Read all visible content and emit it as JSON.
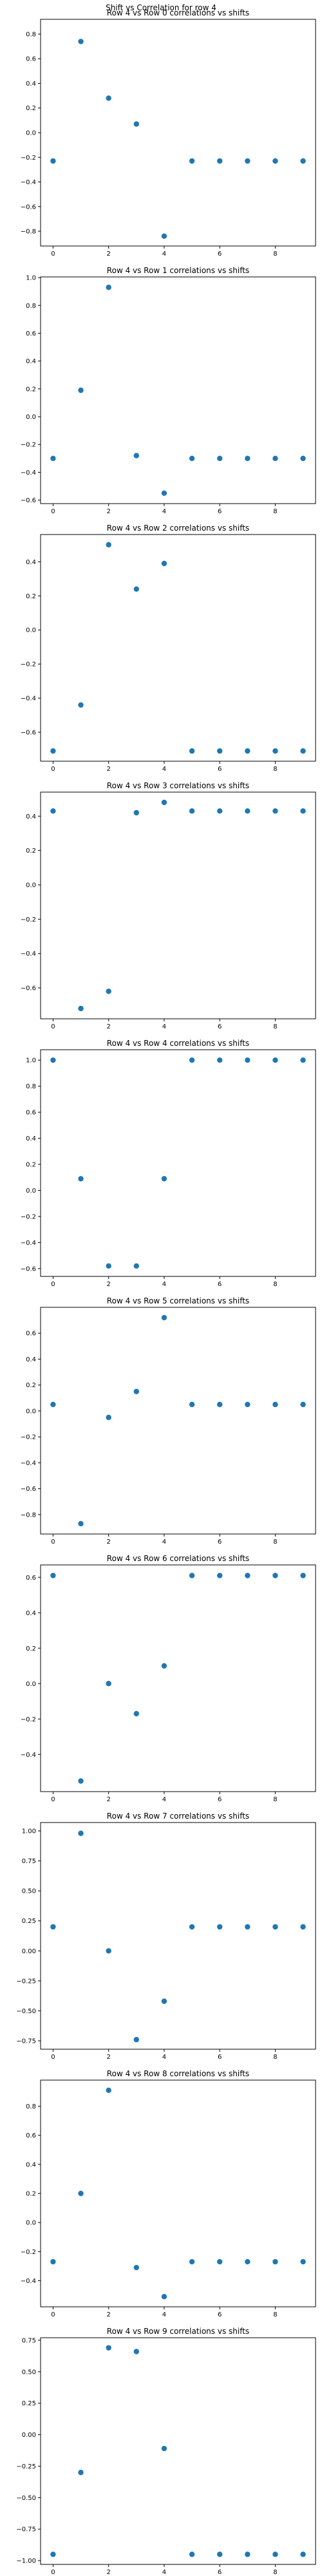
{
  "figure": {
    "suptitle": "Shift vs Correlation for row 4",
    "marker_color": "#1f77b4"
  },
  "chart_data": [
    {
      "type": "scatter",
      "title": "Row 4 vs Row 0 correlations vs shifts",
      "x": [
        0,
        1,
        2,
        3,
        4,
        5,
        6,
        7,
        8,
        9
      ],
      "y": [
        -0.23,
        0.74,
        0.28,
        0.07,
        -0.84,
        -0.23,
        -0.23,
        -0.23,
        -0.23,
        -0.23
      ],
      "xticks": [
        0,
        2,
        4,
        6,
        8
      ],
      "yticks": [
        -0.8,
        -0.6,
        -0.4,
        -0.2,
        0.0,
        0.2,
        0.4,
        0.6,
        0.8
      ],
      "ytick_labels": [
        "−0.8",
        "−0.6",
        "−0.4",
        "−0.2",
        "0.0",
        "0.2",
        "0.4",
        "0.6",
        "0.8"
      ],
      "xlim": [
        -0.45,
        9.45
      ],
      "ylim": [
        -0.92,
        0.92
      ]
    },
    {
      "type": "scatter",
      "title": "Row 4 vs Row 1 correlations vs shifts",
      "x": [
        0,
        1,
        2,
        3,
        4,
        5,
        6,
        7,
        8,
        9
      ],
      "y": [
        -0.3,
        0.19,
        0.93,
        -0.28,
        -0.55,
        -0.3,
        -0.3,
        -0.3,
        -0.3,
        -0.3
      ],
      "xticks": [
        0,
        2,
        4,
        6,
        8
      ],
      "yticks": [
        -0.6,
        -0.4,
        -0.2,
        0.0,
        0.2,
        0.4,
        0.6,
        0.8,
        1.0
      ],
      "ytick_labels": [
        "−0.6",
        "−0.4",
        "−0.2",
        "0.0",
        "0.2",
        "0.4",
        "0.6",
        "0.8",
        "1.0"
      ],
      "xlim": [
        -0.45,
        9.45
      ],
      "ylim": [
        -0.625,
        1.005
      ]
    },
    {
      "type": "scatter",
      "title": "Row 4 vs Row 2 correlations vs shifts",
      "x": [
        0,
        1,
        2,
        3,
        4,
        5,
        6,
        7,
        8,
        9
      ],
      "y": [
        -0.71,
        -0.44,
        0.5,
        0.24,
        0.39,
        -0.71,
        -0.71,
        -0.71,
        -0.71,
        -0.71
      ],
      "xticks": [
        0,
        2,
        4,
        6,
        8
      ],
      "yticks": [
        -0.6,
        -0.4,
        -0.2,
        0.0,
        0.2,
        0.4
      ],
      "ytick_labels": [
        "−0.6",
        "−0.4",
        "−0.2",
        "0.0",
        "0.2",
        "0.4"
      ],
      "xlim": [
        -0.45,
        9.45
      ],
      "ylim": [
        -0.77,
        0.56
      ]
    },
    {
      "type": "scatter",
      "title": "Row 4 vs Row 3 correlations vs shifts",
      "x": [
        0,
        1,
        2,
        3,
        4,
        5,
        6,
        7,
        8,
        9
      ],
      "y": [
        0.43,
        -0.72,
        -0.62,
        0.42,
        0.48,
        0.43,
        0.43,
        0.43,
        0.43,
        0.43
      ],
      "xticks": [
        0,
        2,
        4,
        6,
        8
      ],
      "yticks": [
        -0.6,
        -0.4,
        -0.2,
        0.0,
        0.2,
        0.4
      ],
      "ytick_labels": [
        "−0.6",
        "−0.4",
        "−0.2",
        "0.0",
        "0.2",
        "0.4"
      ],
      "xlim": [
        -0.45,
        9.45
      ],
      "ylim": [
        -0.78,
        0.54
      ]
    },
    {
      "type": "scatter",
      "title": "Row 4 vs Row 4 correlations vs shifts",
      "x": [
        0,
        1,
        2,
        3,
        4,
        5,
        6,
        7,
        8,
        9
      ],
      "y": [
        1.0,
        0.09,
        -0.58,
        -0.58,
        0.09,
        1.0,
        1.0,
        1.0,
        1.0,
        1.0
      ],
      "xticks": [
        0,
        2,
        4,
        6,
        8
      ],
      "yticks": [
        -0.6,
        -0.4,
        -0.2,
        0.0,
        0.2,
        0.4,
        0.6,
        0.8,
        1.0
      ],
      "ytick_labels": [
        "−0.6",
        "−0.4",
        "−0.2",
        "0.0",
        "0.2",
        "0.4",
        "0.6",
        "0.8",
        "1.0"
      ],
      "xlim": [
        -0.45,
        9.45
      ],
      "ylim": [
        -0.66,
        1.08
      ]
    },
    {
      "type": "scatter",
      "title": "Row 4 vs Row 5 correlations vs shifts",
      "x": [
        0,
        1,
        2,
        3,
        4,
        5,
        6,
        7,
        8,
        9
      ],
      "y": [
        0.05,
        -0.87,
        -0.05,
        0.15,
        0.72,
        0.05,
        0.05,
        0.05,
        0.05,
        0.05
      ],
      "xticks": [
        0,
        2,
        4,
        6,
        8
      ],
      "yticks": [
        -0.8,
        -0.6,
        -0.4,
        -0.2,
        0.0,
        0.2,
        0.4,
        0.6
      ],
      "ytick_labels": [
        "−0.8",
        "−0.6",
        "−0.4",
        "−0.2",
        "0.0",
        "0.2",
        "0.4",
        "0.6"
      ],
      "xlim": [
        -0.45,
        9.45
      ],
      "ylim": [
        -0.95,
        0.8
      ]
    },
    {
      "type": "scatter",
      "title": "Row 4 vs Row 6 correlations vs shifts",
      "x": [
        0,
        1,
        2,
        3,
        4,
        5,
        6,
        7,
        8,
        9
      ],
      "y": [
        0.61,
        -0.55,
        0.0,
        -0.17,
        0.1,
        0.61,
        0.61,
        0.61,
        0.61,
        0.61
      ],
      "xticks": [
        0,
        2,
        4,
        6,
        8
      ],
      "yticks": [
        -0.4,
        -0.2,
        0.0,
        0.2,
        0.4,
        0.6
      ],
      "ytick_labels": [
        "−0.4",
        "−0.2",
        "0.0",
        "0.2",
        "0.4",
        "0.6"
      ],
      "xlim": [
        -0.45,
        9.45
      ],
      "ylim": [
        -0.61,
        0.67
      ]
    },
    {
      "type": "scatter",
      "title": "Row 4 vs Row 7 correlations vs shifts",
      "x": [
        0,
        1,
        2,
        3,
        4,
        5,
        6,
        7,
        8,
        9
      ],
      "y": [
        0.2,
        0.98,
        0.0,
        -0.74,
        -0.42,
        0.2,
        0.2,
        0.2,
        0.2,
        0.2
      ],
      "xticks": [
        0,
        2,
        4,
        6,
        8
      ],
      "yticks": [
        -0.75,
        -0.5,
        -0.25,
        0.0,
        0.25,
        0.5,
        0.75,
        1.0
      ],
      "ytick_labels": [
        "−0.75",
        "−0.50",
        "−0.25",
        "0.00",
        "0.25",
        "0.50",
        "0.75",
        "1.00"
      ],
      "xlim": [
        -0.45,
        9.45
      ],
      "ylim": [
        -0.82,
        1.07
      ]
    },
    {
      "type": "scatter",
      "title": "Row 4 vs Row 8 correlations vs shifts",
      "x": [
        0,
        1,
        2,
        3,
        4,
        5,
        6,
        7,
        8,
        9
      ],
      "y": [
        -0.27,
        0.2,
        0.91,
        -0.31,
        -0.51,
        -0.27,
        -0.27,
        -0.27,
        -0.27,
        -0.27
      ],
      "xticks": [
        0,
        2,
        4,
        6,
        8
      ],
      "yticks": [
        -0.4,
        -0.2,
        0.0,
        0.2,
        0.4,
        0.6,
        0.8
      ],
      "ytick_labels": [
        "−0.4",
        "−0.2",
        "0.0",
        "0.2",
        "0.4",
        "0.6",
        "0.8"
      ],
      "xlim": [
        -0.45,
        9.45
      ],
      "ylim": [
        -0.58,
        0.98
      ]
    },
    {
      "type": "scatter",
      "title": "Row 4 vs Row 9 correlations vs shifts",
      "x": [
        0,
        1,
        2,
        3,
        4,
        5,
        6,
        7,
        8,
        9
      ],
      "y": [
        -0.95,
        -0.3,
        0.69,
        0.66,
        -0.11,
        -0.95,
        -0.95,
        -0.95,
        -0.95,
        -0.95
      ],
      "xticks": [
        0,
        2,
        4,
        6,
        8
      ],
      "yticks": [
        -1.0,
        -0.75,
        -0.5,
        -0.25,
        0.0,
        0.25,
        0.5,
        0.75
      ],
      "ytick_labels": [
        "−1.00",
        "−0.75",
        "−0.50",
        "−0.25",
        "0.00",
        "0.25",
        "0.50",
        "0.75"
      ],
      "xlim": [
        -0.45,
        9.45
      ],
      "ylim": [
        -1.03,
        0.77
      ]
    }
  ]
}
